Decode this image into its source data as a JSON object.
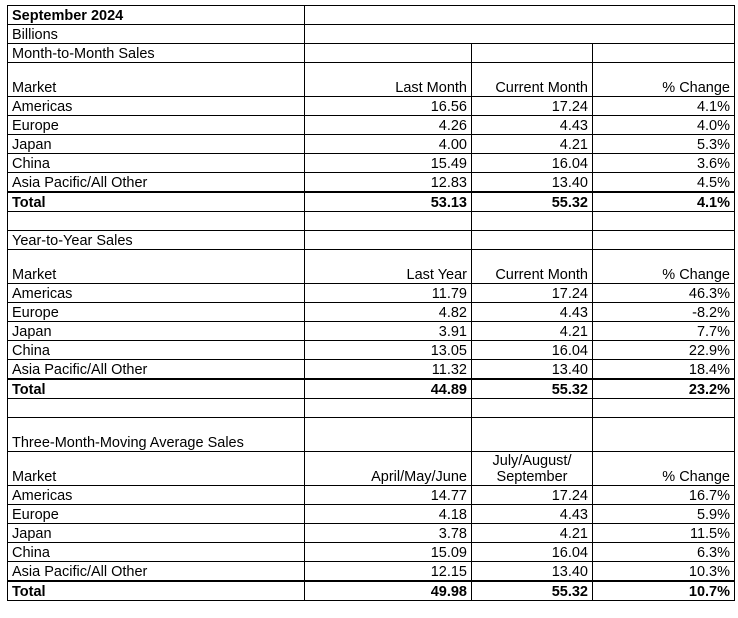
{
  "title": "September 2024",
  "units": "Billions",
  "sections": [
    {
      "heading": "Month-to-Month Sales",
      "columns": [
        "Market",
        "Last Month",
        "Current Month",
        "% Change"
      ],
      "rows": [
        [
          "Americas",
          "16.56",
          "17.24",
          "4.1%"
        ],
        [
          "Europe",
          "4.26",
          "4.43",
          "4.0%"
        ],
        [
          "Japan",
          "4.00",
          "4.21",
          "5.3%"
        ],
        [
          "China",
          "15.49",
          "16.04",
          "3.6%"
        ],
        [
          "Asia Pacific/All Other",
          "12.83",
          "13.40",
          "4.5%"
        ]
      ],
      "total": [
        "Total",
        "53.13",
        "55.32",
        "4.1%"
      ]
    },
    {
      "heading": "Year-to-Year Sales",
      "columns": [
        "Market",
        "Last Year",
        "Current Month",
        "% Change"
      ],
      "rows": [
        [
          "Americas",
          "11.79",
          "17.24",
          "46.3%"
        ],
        [
          "Europe",
          "4.82",
          "4.43",
          "-8.2%"
        ],
        [
          "Japan",
          "3.91",
          "4.21",
          "7.7%"
        ],
        [
          "China",
          "13.05",
          "16.04",
          "22.9%"
        ],
        [
          "Asia Pacific/All Other",
          "11.32",
          "13.40",
          "18.4%"
        ]
      ],
      "total": [
        "Total",
        "44.89",
        "55.32",
        "23.2%"
      ]
    },
    {
      "heading": "Three-Month-Moving Average Sales",
      "columns": [
        "Market",
        "April/May/June",
        "July/August/ September",
        "% Change"
      ],
      "rows": [
        [
          "Americas",
          "14.77",
          "17.24",
          "16.7%"
        ],
        [
          "Europe",
          "4.18",
          "4.43",
          "5.9%"
        ],
        [
          "Japan",
          "3.78",
          "4.21",
          "11.5%"
        ],
        [
          "China",
          "15.09",
          "16.04",
          "6.3%"
        ],
        [
          "Asia Pacific/All Other",
          "12.15",
          "13.40",
          "10.3%"
        ]
      ],
      "total": [
        "Total",
        "49.98",
        "55.32",
        "10.7%"
      ]
    }
  ]
}
